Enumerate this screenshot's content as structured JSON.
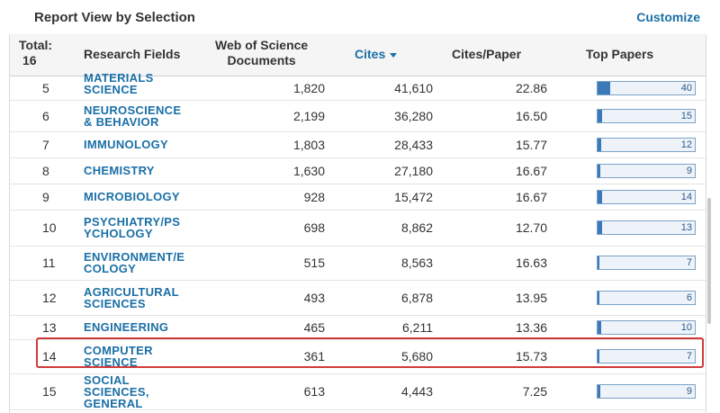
{
  "header_bar": {
    "title": "Report View by Selection",
    "customize": "Customize"
  },
  "columns": {
    "total_label": "Total:",
    "total_value": "16",
    "field": "Research Fields",
    "docs_line1": "Web of Science",
    "docs_line2": "Documents",
    "cites": "Cites",
    "cites_per_paper": "Cites/Paper",
    "top_papers": "Top Papers"
  },
  "top_papers_max": 40,
  "rows": [
    {
      "rank": "5",
      "field": "MATERIALS SCIENCE",
      "docs": "1,820",
      "cites": "41,610",
      "cpp": "22.86",
      "top": 40
    },
    {
      "rank": "6",
      "field": "NEUROSCIENCE & BEHAVIOR",
      "docs": "2,199",
      "cites": "36,280",
      "cpp": "16.50",
      "top": 15
    },
    {
      "rank": "7",
      "field": "IMMUNOLOGY",
      "docs": "1,803",
      "cites": "28,433",
      "cpp": "15.77",
      "top": 12
    },
    {
      "rank": "8",
      "field": "CHEMISTRY",
      "docs": "1,630",
      "cites": "27,180",
      "cpp": "16.67",
      "top": 9
    },
    {
      "rank": "9",
      "field": "MICROBIOLOGY",
      "docs": "928",
      "cites": "15,472",
      "cpp": "16.67",
      "top": 14
    },
    {
      "rank": "10",
      "field": "PSYCHIATRY/PSYCHOLOGY",
      "docs": "698",
      "cites": "8,862",
      "cpp": "12.70",
      "top": 13
    },
    {
      "rank": "11",
      "field": "ENVIRONMENT/ECOLOGY",
      "docs": "515",
      "cites": "8,563",
      "cpp": "16.63",
      "top": 7
    },
    {
      "rank": "12",
      "field": "AGRICULTURAL SCIENCES",
      "docs": "493",
      "cites": "6,878",
      "cpp": "13.95",
      "top": 6
    },
    {
      "rank": "13",
      "field": "ENGINEERING",
      "docs": "465",
      "cites": "6,211",
      "cpp": "13.36",
      "top": 10
    },
    {
      "rank": "14",
      "field": "COMPUTER SCIENCE",
      "docs": "361",
      "cites": "5,680",
      "cpp": "15.73",
      "top": 7
    },
    {
      "rank": "15",
      "field": "SOCIAL SCIENCES, GENERAL",
      "docs": "613",
      "cites": "4,443",
      "cpp": "7.25",
      "top": 9
    }
  ],
  "highlight_color": "#d23a3a",
  "link_color": "#1a6fa6"
}
